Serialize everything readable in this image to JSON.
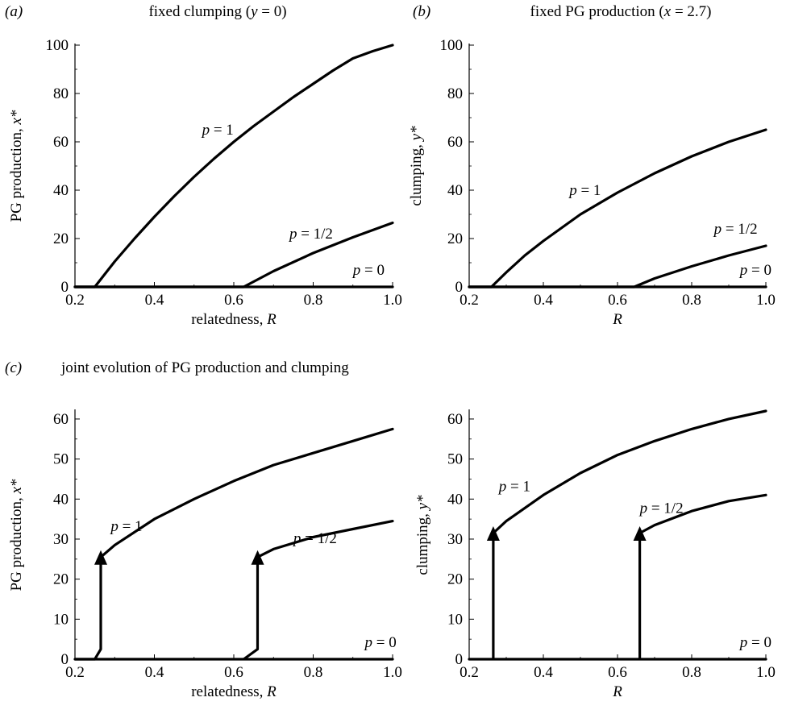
{
  "panel_letters": {
    "a": "(a)",
    "b": "(b)",
    "c": "(c)"
  },
  "section_c_title": "joint evolution of PG production and clumping",
  "chart_data": [
    {
      "id": "a",
      "type": "line",
      "title_text": "fixed clumping (",
      "title_var": "y",
      "title_rest": " = 0)",
      "xlabel_text": "relatedness, ",
      "xlabel_var": "R",
      "ylabel_text": "PG production, ",
      "ylabel_var": "x*",
      "xlim": [
        0.2,
        1.0
      ],
      "ylim": [
        0,
        100
      ],
      "xticks": [
        "0.2",
        "0.4",
        "0.6",
        "0.8",
        "1.0"
      ],
      "yticks": [
        "0",
        "20",
        "40",
        "60",
        "80",
        "100"
      ],
      "series": [
        {
          "label_var": "p",
          "label_val": " = 1",
          "x": [
            0.2,
            0.25,
            0.3,
            0.35,
            0.4,
            0.45,
            0.5,
            0.55,
            0.6,
            0.65,
            0.7,
            0.75,
            0.8,
            0.85,
            0.9,
            0.95,
            1.0
          ],
          "y": [
            0,
            0,
            10.5,
            20,
            29,
            37.5,
            45.5,
            53,
            60,
            66.5,
            72.5,
            78.5,
            84,
            89.5,
            94.5,
            97.5,
            100
          ],
          "label_at": [
            0.52,
            63
          ]
        },
        {
          "label_var": "p",
          "label_val": " = 1/2",
          "x": [
            0.2,
            0.625,
            0.7,
            0.8,
            0.9,
            1.0
          ],
          "y": [
            0,
            0,
            6.5,
            14,
            20.5,
            26.5
          ],
          "label_at": [
            0.74,
            20
          ]
        },
        {
          "label_var": "p",
          "label_val": " = 0",
          "x": [
            0.2,
            1.0
          ],
          "y": [
            0,
            0
          ],
          "label_at": [
            0.9,
            5
          ]
        }
      ]
    },
    {
      "id": "b",
      "type": "line",
      "title_text": "fixed PG production (",
      "title_var": "x",
      "title_rest": " = 2.7)",
      "xlabel_text": "",
      "xlabel_var": "R",
      "ylabel_text": "clumping, ",
      "ylabel_var": "y*",
      "xlim": [
        0.2,
        1.0
      ],
      "ylim": [
        0,
        100
      ],
      "xticks": [
        "0.2",
        "0.4",
        "0.6",
        "0.8",
        "1.0"
      ],
      "yticks": [
        "0",
        "20",
        "40",
        "60",
        "80",
        "100"
      ],
      "series": [
        {
          "label_var": "p",
          "label_val": " = 1",
          "x": [
            0.2,
            0.26,
            0.3,
            0.35,
            0.4,
            0.5,
            0.6,
            0.7,
            0.8,
            0.9,
            1.0
          ],
          "y": [
            0,
            0,
            6,
            13,
            19,
            30,
            39,
            47,
            54,
            60,
            65
          ],
          "label_at": [
            0.47,
            38
          ]
        },
        {
          "label_var": "p",
          "label_val": " = 1/2",
          "x": [
            0.2,
            0.645,
            0.7,
            0.8,
            0.9,
            1.0
          ],
          "y": [
            0,
            0,
            3.5,
            8.5,
            13,
            17
          ],
          "label_at": [
            0.86,
            22
          ]
        },
        {
          "label_var": "p",
          "label_val": " = 0",
          "x": [
            0.2,
            1.0
          ],
          "y": [
            0,
            0
          ],
          "label_at": [
            0.93,
            5
          ]
        }
      ]
    },
    {
      "id": "c1",
      "type": "line",
      "xlabel_text": "relatedness, ",
      "xlabel_var": "R",
      "ylabel_text": "PG production, ",
      "ylabel_var": "x*",
      "xlim": [
        0.2,
        1.0
      ],
      "ylim": [
        0,
        62
      ],
      "xticks": [
        "0.2",
        "0.4",
        "0.6",
        "0.8",
        "1.0"
      ],
      "yticks": [
        "0",
        "10",
        "20",
        "30",
        "40",
        "50",
        "60"
      ],
      "series": [
        {
          "label_var": "p",
          "label_val": " = 1",
          "x": [
            0.265,
            0.3,
            0.4,
            0.5,
            0.6,
            0.7,
            0.8,
            0.9,
            1.0
          ],
          "y": [
            25.5,
            28.5,
            35,
            40,
            44.5,
            48.5,
            51.5,
            54.5,
            57.5
          ],
          "label_at": [
            0.29,
            32
          ]
        },
        {
          "label_var": "p",
          "label_val": " = 1/2",
          "x": [
            0.66,
            0.7,
            0.8,
            0.9,
            1.0
          ],
          "y": [
            25.5,
            27.5,
            30.5,
            32.5,
            34.5
          ],
          "label_at": [
            0.75,
            29
          ]
        },
        {
          "label_var": "p",
          "label_val": " = 0",
          "x": [
            0.2,
            1.0
          ],
          "y": [
            0,
            0
          ],
          "label_at": [
            0.93,
            3
          ]
        }
      ],
      "jumps": [
        {
          "path_x": [
            0.2,
            0.25,
            0.265,
            0.265
          ],
          "path_y": [
            0,
            0,
            2.5,
            24
          ]
        },
        {
          "path_x": [
            0.625,
            0.66,
            0.66
          ],
          "path_y": [
            0,
            2.5,
            24
          ]
        }
      ]
    },
    {
      "id": "c2",
      "type": "line",
      "xlabel_text": "",
      "xlabel_var": "R",
      "ylabel_text": "clumping, ",
      "ylabel_var": "y*",
      "xlim": [
        0.2,
        1.0
      ],
      "ylim": [
        0,
        62
      ],
      "xticks": [
        "0.2",
        "0.4",
        "0.6",
        "0.8",
        "1.0"
      ],
      "yticks": [
        "0",
        "10",
        "20",
        "30",
        "40",
        "50",
        "60"
      ],
      "series": [
        {
          "label_var": "p",
          "label_val": " = 1",
          "x": [
            0.265,
            0.3,
            0.4,
            0.5,
            0.6,
            0.7,
            0.8,
            0.9,
            1.0
          ],
          "y": [
            31.5,
            34.5,
            41,
            46.5,
            51,
            54.5,
            57.5,
            60,
            62
          ],
          "label_at": [
            0.28,
            42
          ]
        },
        {
          "label_var": "p",
          "label_val": " = 1/2",
          "x": [
            0.66,
            0.7,
            0.8,
            0.9,
            1.0
          ],
          "y": [
            31.5,
            33.5,
            37,
            39.5,
            41
          ],
          "label_at": [
            0.66,
            36.5
          ]
        },
        {
          "label_var": "p",
          "label_val": " = 0",
          "x": [
            0.2,
            1.0
          ],
          "y": [
            0,
            0
          ],
          "label_at": [
            0.93,
            3
          ]
        }
      ],
      "jumps": [
        {
          "path_x": [
            0.265,
            0.265
          ],
          "path_y": [
            0,
            30
          ]
        },
        {
          "path_x": [
            0.66,
            0.66
          ],
          "path_y": [
            0,
            30
          ]
        }
      ]
    }
  ]
}
